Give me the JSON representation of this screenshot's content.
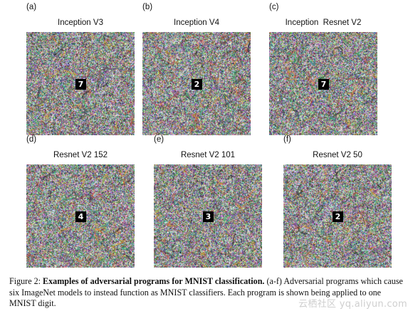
{
  "panels": [
    {
      "letter": "(a)",
      "title": "Inception V3",
      "digit": "7",
      "seed": 11
    },
    {
      "letter": "(b)",
      "title": "Inception V4",
      "digit": "2",
      "seed": 23
    },
    {
      "letter": "(c)",
      "title": "Inception  Resnet V2",
      "digit": "7",
      "seed": 37
    },
    {
      "letter": "(d)",
      "title": "Resnet V2 152",
      "digit": "4",
      "seed": 51
    },
    {
      "letter": "(e)",
      "title": "Resnet V2 101",
      "digit": "3",
      "seed": 67
    },
    {
      "letter": "(f)",
      "title": "Resnet V2 50",
      "digit": "2",
      "seed": 83
    }
  ],
  "caption": {
    "label": "Figure 2:",
    "bold": "Examples of adversarial programs for MNIST classification.",
    "rest": "(a-f) Adversarial programs which cause six ImageNet models to instead function as MNIST classifiers. Each program is shown being applied to one MNIST digit."
  },
  "watermark": "云栖社区 yq.aliyun.com"
}
